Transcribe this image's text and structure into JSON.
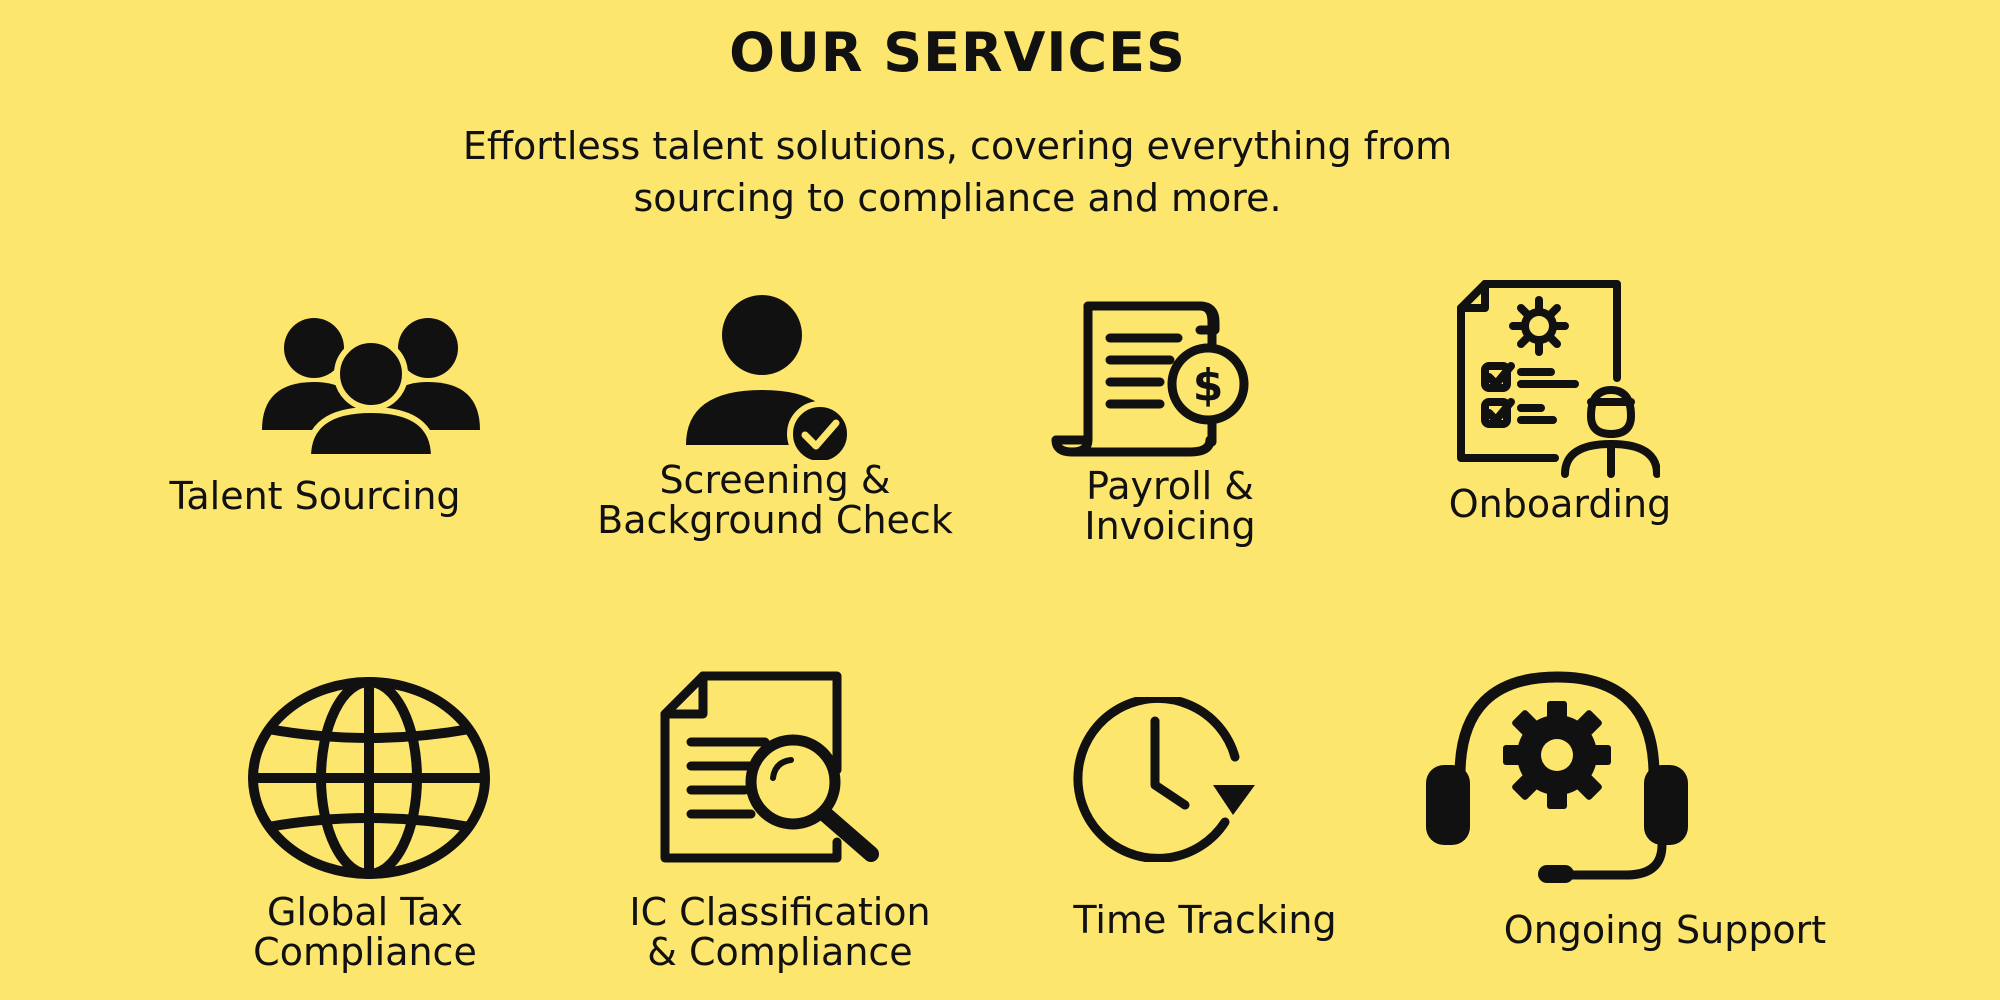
{
  "header": {
    "title": "OUR SERVICES",
    "subtitle_line1": "Effortless talent solutions, covering everything from",
    "subtitle_line2": "sourcing to compliance and more."
  },
  "services": [
    {
      "icon": "group-people-icon",
      "label_line1": "Talent Sourcing",
      "label_line2": ""
    },
    {
      "icon": "person-check-icon",
      "label_line1": "Screening &",
      "label_line2": "Background Check"
    },
    {
      "icon": "invoice-dollar-icon",
      "label_line1": "Payroll &",
      "label_line2": "Invoicing"
    },
    {
      "icon": "onboarding-checklist-icon",
      "label_line1": "Onboarding",
      "label_line2": ""
    },
    {
      "icon": "globe-icon",
      "label_line1": "Global Tax",
      "label_line2": "Compliance"
    },
    {
      "icon": "document-search-icon",
      "label_line1": "IC Classification",
      "label_line2": "& Compliance"
    },
    {
      "icon": "clock-icon",
      "label_line1": "Time Tracking",
      "label_line2": ""
    },
    {
      "icon": "headset-gear-icon",
      "label_line1": "Ongoing Support",
      "label_line2": ""
    }
  ],
  "colors": {
    "background": "#fde66e",
    "foreground": "#111111"
  }
}
